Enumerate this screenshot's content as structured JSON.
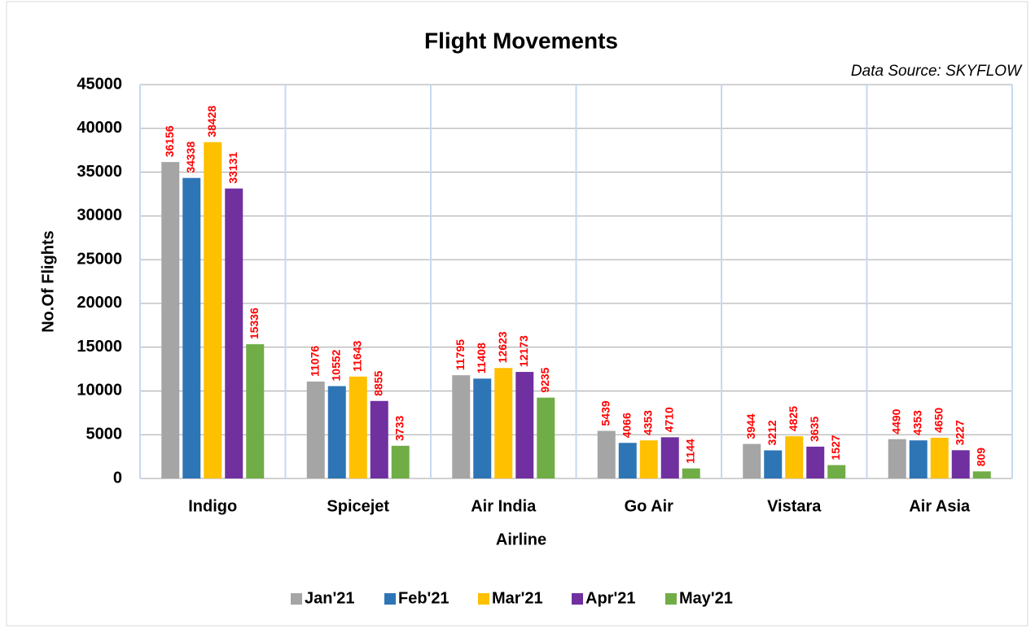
{
  "chart_data": {
    "type": "bar",
    "title": "Flight Movements",
    "subtitle": "Data Source: SKYFLOW",
    "x_label": "Airline",
    "y_label": "No.Of Flights",
    "categories": [
      "Indigo",
      "Spicejet",
      "Air India",
      "Go Air",
      "Vistara",
      "Air Asia"
    ],
    "series": [
      {
        "name": "Jan'21",
        "color": "#a5a5a5",
        "values": [
          36156,
          11076,
          11795,
          5439,
          3944,
          4490
        ]
      },
      {
        "name": "Feb'21",
        "color": "#2e75b6",
        "values": [
          34338,
          10552,
          11408,
          4066,
          3212,
          4353
        ]
      },
      {
        "name": "Mar'21",
        "color": "#ffc000",
        "values": [
          38428,
          11643,
          12623,
          4353,
          4825,
          4650
        ]
      },
      {
        "name": "Apr'21",
        "color": "#7030a0",
        "values": [
          33131,
          8855,
          12173,
          4710,
          3635,
          3227
        ]
      },
      {
        "name": "May'21",
        "color": "#70ad47",
        "values": [
          15336,
          3733,
          9235,
          1144,
          1527,
          809
        ]
      }
    ],
    "ylim": [
      0,
      45000
    ],
    "yticks": [
      0,
      5000,
      10000,
      15000,
      20000,
      25000,
      30000,
      35000,
      40000,
      45000
    ],
    "grid": true,
    "legend": "bottom",
    "label_color": "#ff0000"
  }
}
